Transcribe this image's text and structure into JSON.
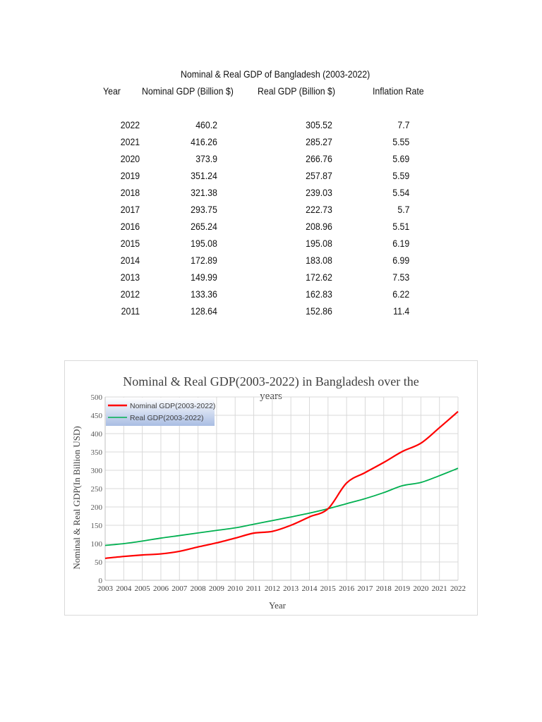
{
  "table": {
    "title": "Nominal & Real GDP of Bangladesh (2003-2022)",
    "headers": [
      "Year",
      "Nominal GDP (Billion $)",
      "Real GDP (Billion $)",
      "Inflation Rate"
    ],
    "rows": [
      [
        "2022",
        "460.2",
        "305.52",
        "7.7"
      ],
      [
        "2021",
        "416.26",
        "285.27",
        "5.55"
      ],
      [
        "2020",
        "373.9",
        "266.76",
        "5.69"
      ],
      [
        "2019",
        "351.24",
        "257.87",
        "5.59"
      ],
      [
        "2018",
        "321.38",
        "239.03",
        "5.54"
      ],
      [
        "2017",
        "293.75",
        "222.73",
        "5.7"
      ],
      [
        "2016",
        "265.24",
        "208.96",
        "5.51"
      ],
      [
        "2015",
        "195.08",
        "195.08",
        "6.19"
      ],
      [
        "2014",
        "172.89",
        "183.08",
        "6.99"
      ],
      [
        "2013",
        "149.99",
        "172.62",
        "7.53"
      ],
      [
        "2012",
        "133.36",
        "162.83",
        "6.22"
      ],
      [
        "2011",
        "128.64",
        "152.86",
        "11.4"
      ]
    ]
  },
  "chart_data": {
    "type": "line",
    "title": "Nominal & Real GDP(2003-2022) in Bangladesh over the years",
    "xlabel": "Year",
    "ylabel": "Nominal & Real GDP(In Billion USD)",
    "x": [
      2003,
      2004,
      2005,
      2006,
      2007,
      2008,
      2009,
      2010,
      2011,
      2012,
      2013,
      2014,
      2015,
      2016,
      2017,
      2018,
      2019,
      2020,
      2021,
      2022
    ],
    "ylim": [
      0,
      500
    ],
    "yticks": [
      0,
      50,
      100,
      150,
      200,
      250,
      300,
      350,
      400,
      450,
      500
    ],
    "grid": true,
    "legend": "top-left",
    "series": [
      {
        "name": "Nominal GDP(2003-2022)",
        "color": "#ff0000",
        "values": [
          60,
          65,
          69,
          72,
          79,
          91,
          102,
          115,
          128.64,
          133.36,
          149.99,
          172.89,
          195.08,
          265.24,
          293.75,
          321.38,
          351.24,
          373.9,
          416.26,
          460.2
        ]
      },
      {
        "name": "Real GDP(2003-2022)",
        "color": "#00b050",
        "values": [
          95,
          100,
          107,
          115,
          122,
          129,
          136,
          143,
          152.86,
          162.83,
          172.62,
          183.08,
          195.08,
          208.96,
          222.73,
          239.03,
          257.87,
          266.76,
          285.27,
          305.52
        ]
      }
    ]
  }
}
